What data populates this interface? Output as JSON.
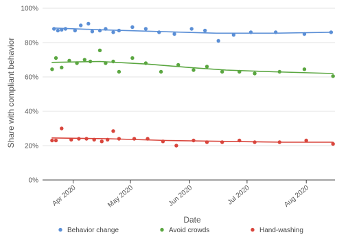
{
  "chart_data": {
    "type": "scatter",
    "xlabel": "Date",
    "ylabel": "Share with compliant behavior",
    "x_range": [
      "2020-03-16",
      "2020-08-16"
    ],
    "ylim": [
      0,
      100
    ],
    "y_ticks": [
      0,
      20,
      40,
      60,
      80,
      100
    ],
    "y_tick_labels": [
      "0%",
      "20%",
      "40%",
      "60%",
      "80%",
      "100%"
    ],
    "x_ticks": [
      "2020-04-01",
      "2020-05-01",
      "2020-06-01",
      "2020-07-01",
      "2020-08-01"
    ],
    "x_tick_labels": [
      "Apr 2020",
      "May 2020",
      "Jun 2020",
      "Jul 2020",
      "Aug 2020"
    ],
    "grid": "horizontal",
    "legend_position": "bottom",
    "series": [
      {
        "name": "Behavior change",
        "color": "#5b8fd6",
        "points": [
          [
            "2020-03-22",
            88
          ],
          [
            "2020-03-24",
            87
          ],
          [
            "2020-03-26",
            87.5
          ],
          [
            "2020-03-28",
            88
          ],
          [
            "2020-04-02",
            87
          ],
          [
            "2020-04-05",
            90
          ],
          [
            "2020-04-09",
            91
          ],
          [
            "2020-04-11",
            86.5
          ],
          [
            "2020-04-15",
            87
          ],
          [
            "2020-04-18",
            88
          ],
          [
            "2020-04-22",
            86
          ],
          [
            "2020-04-25",
            87
          ],
          [
            "2020-05-02",
            89
          ],
          [
            "2020-05-09",
            88
          ],
          [
            "2020-05-16",
            86
          ],
          [
            "2020-05-24",
            85
          ],
          [
            "2020-06-02",
            88
          ],
          [
            "2020-06-09",
            87
          ],
          [
            "2020-06-16",
            81
          ],
          [
            "2020-06-24",
            84.5
          ],
          [
            "2020-07-03",
            86
          ],
          [
            "2020-07-16",
            86
          ],
          [
            "2020-07-31",
            85
          ],
          [
            "2020-08-14",
            86
          ]
        ],
        "trend": [
          [
            "2020-03-22",
            88.5
          ],
          [
            "2020-04-15",
            87.5
          ],
          [
            "2020-05-15",
            86.5
          ],
          [
            "2020-06-15",
            85.5
          ],
          [
            "2020-07-15",
            85.5
          ],
          [
            "2020-08-14",
            86
          ]
        ]
      },
      {
        "name": "Avoid crowds",
        "color": "#5aa640",
        "points": [
          [
            "2020-03-21",
            64.5
          ],
          [
            "2020-03-23",
            71
          ],
          [
            "2020-03-26",
            65.5
          ],
          [
            "2020-03-30",
            69.5
          ],
          [
            "2020-04-03",
            68
          ],
          [
            "2020-04-07",
            70
          ],
          [
            "2020-04-10",
            69
          ],
          [
            "2020-04-15",
            75.5
          ],
          [
            "2020-04-18",
            68
          ],
          [
            "2020-04-22",
            69
          ],
          [
            "2020-04-25",
            63
          ],
          [
            "2020-05-02",
            71
          ],
          [
            "2020-05-09",
            68
          ],
          [
            "2020-05-17",
            63
          ],
          [
            "2020-05-26",
            67
          ],
          [
            "2020-06-03",
            64
          ],
          [
            "2020-06-10",
            66
          ],
          [
            "2020-06-18",
            63
          ],
          [
            "2020-06-27",
            63
          ],
          [
            "2020-07-05",
            62
          ],
          [
            "2020-07-18",
            63
          ],
          [
            "2020-07-31",
            64.5
          ],
          [
            "2020-08-15",
            60.5
          ]
        ],
        "trend": [
          [
            "2020-03-21",
            68.5
          ],
          [
            "2020-04-15",
            69
          ],
          [
            "2020-05-10",
            67.5
          ],
          [
            "2020-06-01",
            65.5
          ],
          [
            "2020-06-20",
            64
          ],
          [
            "2020-07-15",
            63
          ],
          [
            "2020-08-15",
            62
          ]
        ]
      },
      {
        "name": "Hand-washing",
        "color": "#d9453c",
        "points": [
          [
            "2020-03-21",
            23
          ],
          [
            "2020-03-23",
            23
          ],
          [
            "2020-03-26",
            30
          ],
          [
            "2020-03-31",
            23.5
          ],
          [
            "2020-04-04",
            24
          ],
          [
            "2020-04-08",
            24
          ],
          [
            "2020-04-12",
            23.5
          ],
          [
            "2020-04-16",
            22.5
          ],
          [
            "2020-04-19",
            23.5
          ],
          [
            "2020-04-22",
            28.5
          ],
          [
            "2020-04-25",
            24
          ],
          [
            "2020-05-03",
            24
          ],
          [
            "2020-05-10",
            24
          ],
          [
            "2020-05-18",
            22.5
          ],
          [
            "2020-05-25",
            20
          ],
          [
            "2020-06-03",
            23
          ],
          [
            "2020-06-10",
            22
          ],
          [
            "2020-06-18",
            22
          ],
          [
            "2020-06-27",
            23
          ],
          [
            "2020-07-05",
            22
          ],
          [
            "2020-07-18",
            22
          ],
          [
            "2020-08-01",
            23
          ],
          [
            "2020-08-15",
            21
          ]
        ],
        "trend": [
          [
            "2020-03-21",
            24.5
          ],
          [
            "2020-04-20",
            24
          ],
          [
            "2020-05-20",
            23
          ],
          [
            "2020-06-20",
            22.5
          ],
          [
            "2020-07-20",
            22
          ],
          [
            "2020-08-15",
            22
          ]
        ]
      }
    ]
  }
}
